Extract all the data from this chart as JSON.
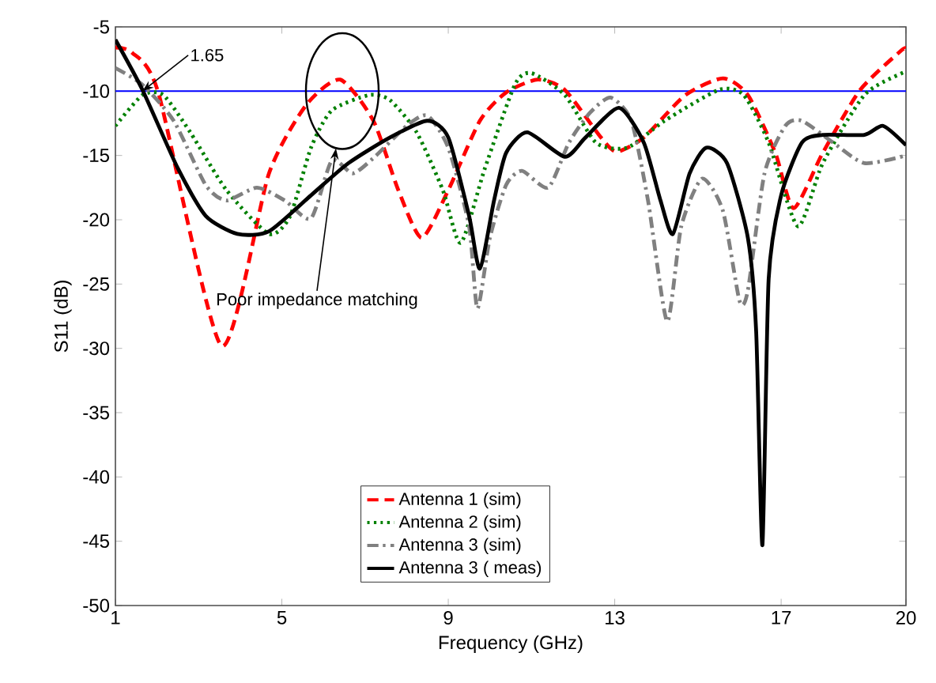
{
  "chart_data": {
    "type": "line",
    "xlabel": "Frequency (GHz)",
    "ylabel": "S11 (dB)",
    "xlim": [
      1,
      20
    ],
    "ylim": [
      -50,
      -5
    ],
    "xticks": [
      1,
      5,
      9,
      13,
      17,
      20
    ],
    "yticks": [
      -5,
      -10,
      -15,
      -20,
      -25,
      -30,
      -35,
      -40,
      -45,
      -50
    ],
    "grid": false,
    "legend": "bottom",
    "marker": "none",
    "ref_lines": [
      {
        "axis": "y",
        "value": -10,
        "color": "#0000ff",
        "line_style": "solid"
      }
    ],
    "annotations": [
      {
        "text": "1.65",
        "x": 1.65,
        "y": -10
      },
      "Poor impedance matching"
    ],
    "series": [
      {
        "name": "Antenna 1 (sim)",
        "color": "#ff0000",
        "line_style": "dashed",
        "x": [
          1,
          1.4,
          2.03,
          3.55,
          4.69,
          5.58,
          6.4,
          7.2,
          7.8,
          8.36,
          9.0,
          9.76,
          10.39,
          11.15,
          11.8,
          12.67,
          13.05,
          13.7,
          14.7,
          15.6,
          16.2,
          16.86,
          17.3,
          18.0,
          18.9,
          19.9,
          20
        ],
        "values": [
          -6.6,
          -7.0,
          -10.1,
          -29.8,
          -16.4,
          -11.1,
          -9.1,
          -12.3,
          -17.7,
          -21.4,
          -17.7,
          -12.3,
          -10.1,
          -9.1,
          -9.9,
          -13.6,
          -14.7,
          -13.6,
          -10.3,
          -9.0,
          -10.3,
          -14.8,
          -19.1,
          -14.8,
          -9.9,
          -6.8,
          -6.8
        ]
      },
      {
        "name": "Antenna 2 (sim)",
        "color": "#008000",
        "line_style": "dotted",
        "x": [
          1,
          1.65,
          2.15,
          2.8,
          3.67,
          4.69,
          5.2,
          5.7,
          6.2,
          7.1,
          7.6,
          8.24,
          8.87,
          9.3,
          9.88,
          10.6,
          11.0,
          11.8,
          12.55,
          13.3,
          14.2,
          15.5,
          16.1,
          16.7,
          17.4,
          18.0,
          19.0,
          19.9,
          20
        ],
        "values": [
          -12.7,
          -10.3,
          -10.3,
          -13.2,
          -17.7,
          -21.1,
          -19.7,
          -14.4,
          -11.5,
          -10.3,
          -10.7,
          -13.2,
          -17.7,
          -21.8,
          -16.0,
          -9.5,
          -8.6,
          -10.3,
          -14.0,
          -14.4,
          -12.3,
          -9.9,
          -10.3,
          -14.0,
          -20.5,
          -15.6,
          -10.3,
          -8.6,
          -8.6
        ]
      },
      {
        "name": "Antenna 3 (sim)",
        "color": "#808080",
        "line_style": "dashdot",
        "x": [
          1,
          1.65,
          2.4,
          3.17,
          3.67,
          4.4,
          5.07,
          5.7,
          6.2,
          6.7,
          7.2,
          8.0,
          8.5,
          9.0,
          9.5,
          9.7,
          10.0,
          10.39,
          10.77,
          11.4,
          11.9,
          12.4,
          12.9,
          13.4,
          13.8,
          14.26,
          14.6,
          15.1,
          15.6,
          16.0,
          16.2,
          16.6,
          17.1,
          17.5,
          18.25,
          19.0,
          20.0
        ],
        "values": [
          -8.2,
          -9.5,
          -12.3,
          -17.3,
          -18.5,
          -17.5,
          -18.5,
          -19.9,
          -15.4,
          -16.4,
          -15.2,
          -12.7,
          -11.9,
          -14.4,
          -20.5,
          -26.9,
          -21.4,
          -17.3,
          -16.2,
          -17.5,
          -14.0,
          -11.7,
          -10.5,
          -12.3,
          -18.5,
          -27.9,
          -20.5,
          -16.8,
          -19.3,
          -26.3,
          -25.5,
          -16.4,
          -12.7,
          -12.3,
          -14.0,
          -15.6,
          -15.0
        ]
      },
      {
        "name": "Antenna 3 ( meas)",
        "color": "#000000",
        "line_style": "solid",
        "x": [
          1,
          1.65,
          2.5,
          3.17,
          3.93,
          4.69,
          5.7,
          6.6,
          7.6,
          8.5,
          9.0,
          9.5,
          9.76,
          10.1,
          10.39,
          10.9,
          11.8,
          12.3,
          13.1,
          13.7,
          14.1,
          14.4,
          14.8,
          15.2,
          15.7,
          16.2,
          16.4,
          16.55,
          16.7,
          17.0,
          17.5,
          18.0,
          19.0,
          19.45,
          20.0
        ],
        "values": [
          -6.0,
          -9.9,
          -16.0,
          -19.7,
          -21.1,
          -20.9,
          -18.1,
          -15.6,
          -13.6,
          -12.3,
          -13.6,
          -19.7,
          -23.8,
          -18.5,
          -14.8,
          -13.2,
          -15.1,
          -13.6,
          -11.3,
          -14.0,
          -18.5,
          -21.1,
          -16.4,
          -14.4,
          -15.6,
          -21.4,
          -28.7,
          -45.3,
          -24.6,
          -18.1,
          -14.0,
          -13.4,
          -13.4,
          -12.7,
          -14.2
        ]
      }
    ]
  }
}
